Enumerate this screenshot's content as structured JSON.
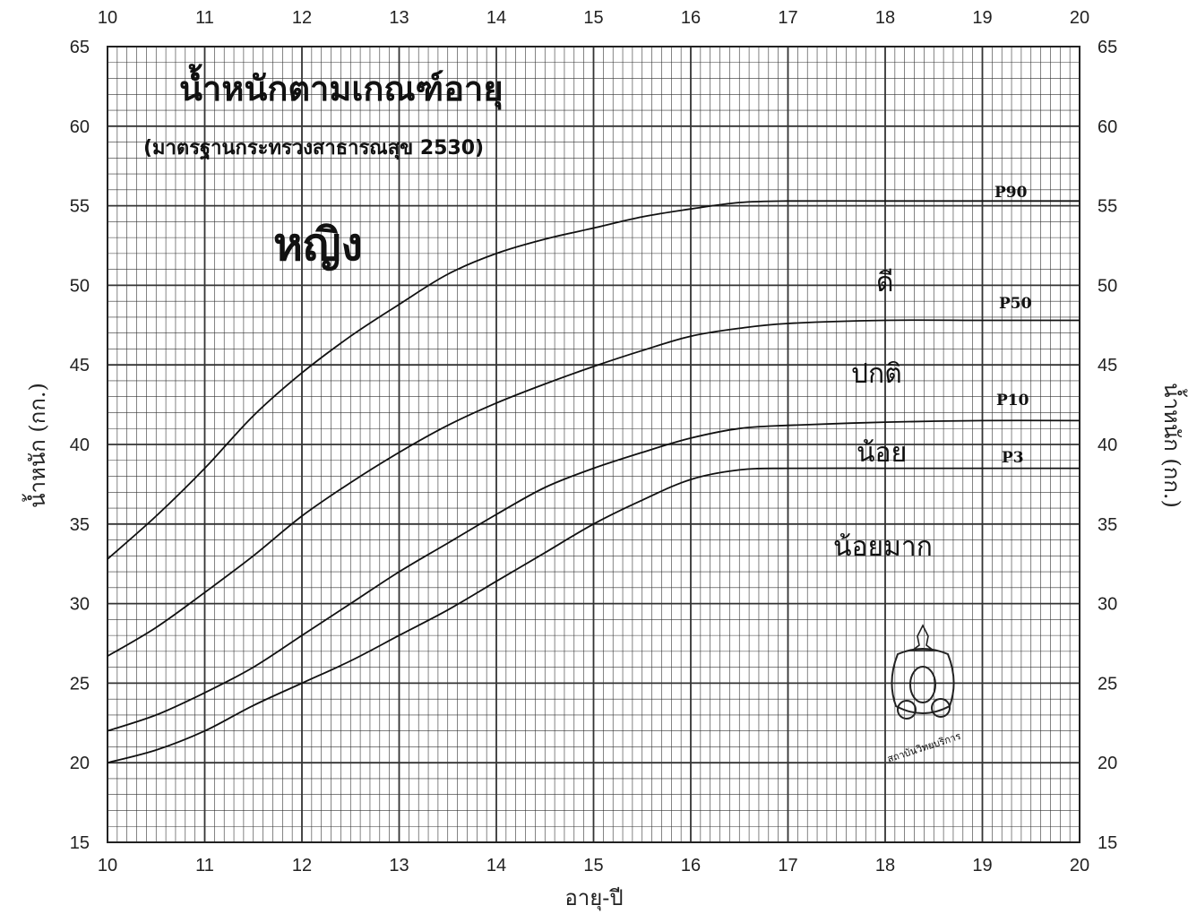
{
  "chart_data": {
    "type": "line",
    "title": "น้ำหนักตามเกณฑ์อายุ",
    "subtitle": "(มาตรฐานกระทรวงสาธารณสุข 2530)",
    "group_label": "หญิง",
    "xlabel": "อายุ-ปี",
    "ylabel_left": "น้ำหนัก (กก.)",
    "ylabel_right": "น้ำหนัก (กก.)",
    "xlim": [
      10,
      20
    ],
    "ylim": [
      15,
      65
    ],
    "x_ticks": [
      "10",
      "11",
      "12",
      "13",
      "14",
      "15",
      "16",
      "17",
      "18",
      "19",
      "20"
    ],
    "y_ticks": [
      "15",
      "20",
      "25",
      "30",
      "35",
      "40",
      "45",
      "50",
      "55",
      "60",
      "65"
    ],
    "grid": true,
    "x": [
      10,
      10.5,
      11,
      11.5,
      12,
      12.5,
      13,
      13.5,
      14,
      14.5,
      15,
      15.5,
      16,
      16.5,
      17,
      18,
      19,
      20
    ],
    "series": [
      {
        "name": "P90",
        "values": [
          32.8,
          35.5,
          38.5,
          41.8,
          44.5,
          46.8,
          48.8,
          50.7,
          52.0,
          52.9,
          53.6,
          54.3,
          54.8,
          55.2,
          55.3,
          55.3,
          55.3,
          55.3
        ]
      },
      {
        "name": "P50",
        "values": [
          26.7,
          28.5,
          30.7,
          33.0,
          35.5,
          37.6,
          39.5,
          41.2,
          42.6,
          43.8,
          44.9,
          45.9,
          46.8,
          47.3,
          47.6,
          47.8,
          47.8,
          47.8
        ]
      },
      {
        "name": "P10",
        "values": [
          22.0,
          23.0,
          24.4,
          26.0,
          28.0,
          30.0,
          32.0,
          33.8,
          35.6,
          37.3,
          38.5,
          39.5,
          40.4,
          41.0,
          41.2,
          41.4,
          41.5,
          41.5
        ]
      },
      {
        "name": "P3",
        "values": [
          20.0,
          20.8,
          22.0,
          23.6,
          25.0,
          26.4,
          28.0,
          29.6,
          31.4,
          33.2,
          35.0,
          36.5,
          37.8,
          38.4,
          38.5,
          38.5,
          38.5,
          38.5
        ]
      }
    ],
    "zone_labels": [
      "ดี",
      "ปกติ",
      "น้อย",
      "น้อยมาก"
    ],
    "seal_text": "สถาบันวิทยบริการ"
  }
}
